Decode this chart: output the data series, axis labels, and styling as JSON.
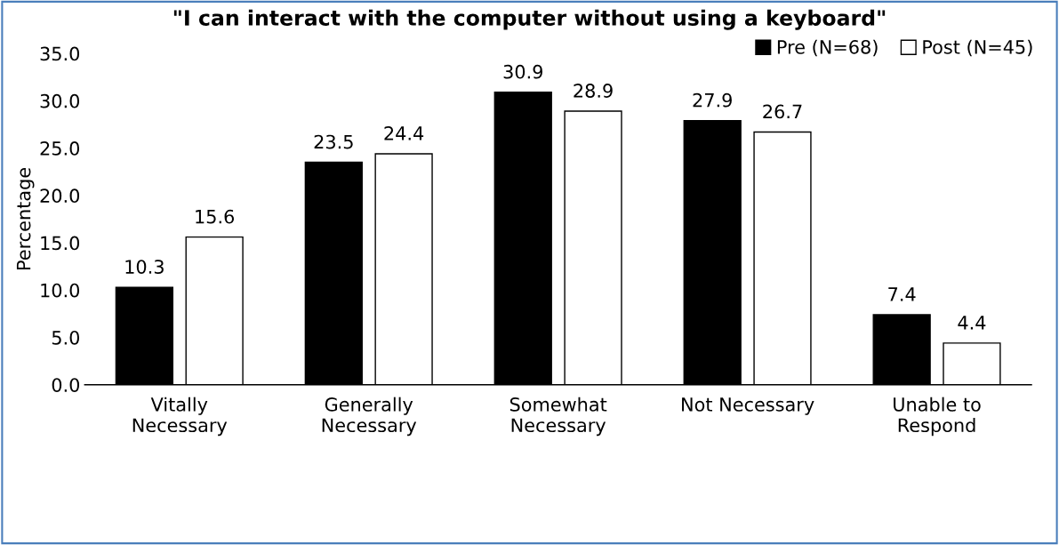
{
  "chart_data": {
    "type": "bar",
    "title": "\"I can interact with the computer without using a keyboard\"",
    "ylabel": "Percentage",
    "categories": [
      "Vitally\nNecessary",
      "Generally\nNecessary",
      "Somewhat\nNecessary",
      "Not Necessary",
      "Unable to\nRespond"
    ],
    "series": [
      {
        "name": "Pre (N=68)",
        "color": "#000000",
        "values": [
          10.3,
          23.5,
          30.9,
          27.9,
          7.4
        ]
      },
      {
        "name": "Post (N=45)",
        "color": "#ffffff",
        "values": [
          15.6,
          24.4,
          28.9,
          26.7,
          4.4
        ]
      }
    ],
    "ylim": [
      0,
      35
    ],
    "yticks": [
      {
        "value": 0,
        "label": "0.0"
      },
      {
        "value": 5,
        "label": "5.0"
      },
      {
        "value": 10,
        "label": "10.0"
      },
      {
        "value": 15,
        "label": "15.0"
      },
      {
        "value": 20,
        "label": "20.0"
      },
      {
        "value": 25,
        "label": "25.0"
      },
      {
        "value": 30,
        "label": "30.0"
      },
      {
        "value": 35,
        "label": "35.0"
      }
    ],
    "data_labels": true,
    "legend": "top right",
    "grid": false
  }
}
